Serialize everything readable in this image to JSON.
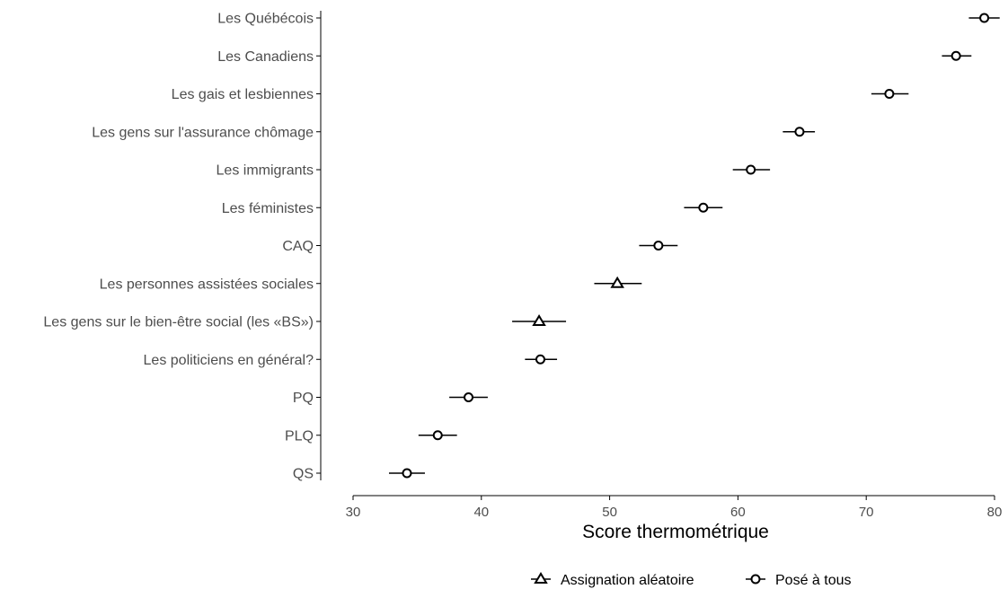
{
  "chart_data": {
    "type": "scatter",
    "xlabel": "Score thermométrique",
    "ylabel": "",
    "xlim": [
      30,
      80
    ],
    "xticks": [
      "30",
      "40",
      "50",
      "60",
      "70",
      "80"
    ],
    "grid": false,
    "legend_position": "bottom",
    "legend": [
      {
        "name": "Assignation aléatoire",
        "marker": "triangle"
      },
      {
        "name": "Posé à tous",
        "marker": "circle"
      }
    ],
    "categories": [
      "Les Québécois",
      "Les Canadiens",
      "Les gais et lesbiennes",
      "Les gens sur l'assurance chômage",
      "Les immigrants",
      "Les féministes",
      "CAQ",
      "Les personnes assistées sociales",
      "Les gens sur le bien-être social (les «BS»)",
      "Les politiciens en général?",
      "PQ",
      "PLQ",
      "QS"
    ],
    "points": [
      {
        "category": "Les Québécois",
        "group": "Posé à tous",
        "value": 79.2,
        "low": 78.0,
        "high": 80.4
      },
      {
        "category": "Les Canadiens",
        "group": "Posé à tous",
        "value": 77.0,
        "low": 75.9,
        "high": 78.2
      },
      {
        "category": "Les gais et lesbiennes",
        "group": "Posé à tous",
        "value": 71.8,
        "low": 70.4,
        "high": 73.3
      },
      {
        "category": "Les gens sur l'assurance chômage",
        "group": "Posé à tous",
        "value": 64.8,
        "low": 63.5,
        "high": 66.0
      },
      {
        "category": "Les immigrants",
        "group": "Posé à tous",
        "value": 61.0,
        "low": 59.6,
        "high": 62.5
      },
      {
        "category": "Les féministes",
        "group": "Posé à tous",
        "value": 57.3,
        "low": 55.8,
        "high": 58.8
      },
      {
        "category": "CAQ",
        "group": "Posé à tous",
        "value": 53.8,
        "low": 52.3,
        "high": 55.3
      },
      {
        "category": "Les personnes assistées sociales",
        "group": "Assignation aléatoire",
        "value": 50.6,
        "low": 48.8,
        "high": 52.5
      },
      {
        "category": "Les gens sur le bien-être social (les «BS»)",
        "group": "Assignation aléatoire",
        "value": 44.5,
        "low": 42.4,
        "high": 46.6
      },
      {
        "category": "Les politiciens en général?",
        "group": "Posé à tous",
        "value": 44.6,
        "low": 43.4,
        "high": 45.9
      },
      {
        "category": "PQ",
        "group": "Posé à tous",
        "value": 39.0,
        "low": 37.5,
        "high": 40.5
      },
      {
        "category": "PLQ",
        "group": "Posé à tous",
        "value": 36.6,
        "low": 35.1,
        "high": 38.1
      },
      {
        "category": "QS",
        "group": "Posé à tous",
        "value": 34.2,
        "low": 32.8,
        "high": 35.6
      }
    ]
  }
}
